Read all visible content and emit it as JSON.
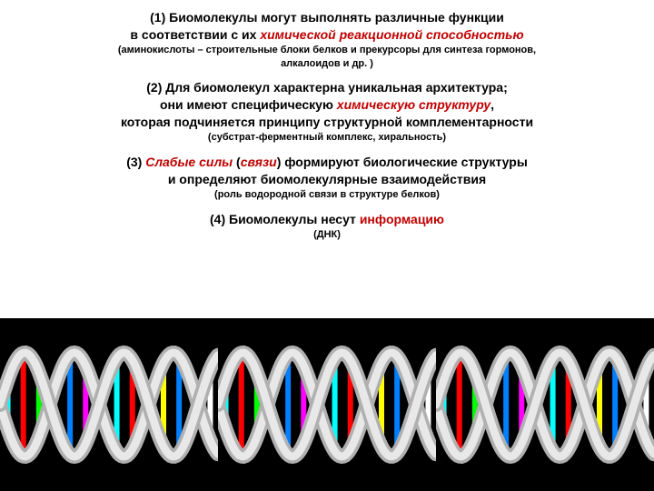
{
  "blocks": [
    {
      "lines": [
        {
          "class": "main-text",
          "parts": [
            {
              "t": "(1) Биомолекулы могут выполнять различные функции"
            }
          ]
        },
        {
          "class": "main-text",
          "parts": [
            {
              "t": "в соответствии с их "
            },
            {
              "t": "химической реакционной способностью",
              "cls": "highlight-red"
            }
          ]
        }
      ],
      "sub": [
        "(аминокислоты – строительные блоки белков и прекурсоры для синтеза гормонов,",
        "алкалоидов и др. )"
      ]
    },
    {
      "lines": [
        {
          "class": "main-text",
          "parts": [
            {
              "t": "(2) Для биомолекул характерна уникальная архитектура;"
            }
          ]
        },
        {
          "class": "main-text",
          "parts": [
            {
              "t": "они имеют специфическую "
            },
            {
              "t": "химическую структуру",
              "cls": "highlight-red"
            },
            {
              "t": ","
            }
          ]
        },
        {
          "class": "main-text",
          "parts": [
            {
              "t": "которая подчиняется принципу структурной комплементарности"
            }
          ]
        }
      ],
      "sub": [
        "(субстрат-ферментный комплекс, хиральность)"
      ]
    },
    {
      "lines": [
        {
          "class": "main-text",
          "parts": [
            {
              "t": "(3) "
            },
            {
              "t": "Слабые силы",
              "cls": "highlight-red"
            },
            {
              "t": " ("
            },
            {
              "t": "связи",
              "cls": "highlight-red"
            },
            {
              "t": ") формируют биологические структуры"
            }
          ]
        },
        {
          "class": "main-text",
          "parts": [
            {
              "t": "и определяют биомолекулярные взаимодействия"
            }
          ]
        }
      ],
      "sub": [
        "(роль водородной связи в структуре белков)"
      ]
    },
    {
      "lines": [
        {
          "class": "main-text",
          "parts": [
            {
              "t": "(4) Биомолекулы несут "
            },
            {
              "t": "информацию",
              "cls": "highlight-red-plain"
            }
          ]
        }
      ],
      "sub": [
        "(ДНК)"
      ]
    }
  ],
  "dna": {
    "background": "#000000",
    "backbone_color_a": "#e8e8e8",
    "backbone_color_b": "#b0b0b0",
    "pair_colors": [
      "#00ffff",
      "#ff0000",
      "#00ff00",
      "#ffff00",
      "#0080ff",
      "#ff00ff",
      "#ffffff"
    ],
    "helix_count": 3,
    "helix_width": 240,
    "helix_height": 150,
    "turns": 2.2,
    "pairs_per_helix": 14,
    "strand_width": 16
  }
}
